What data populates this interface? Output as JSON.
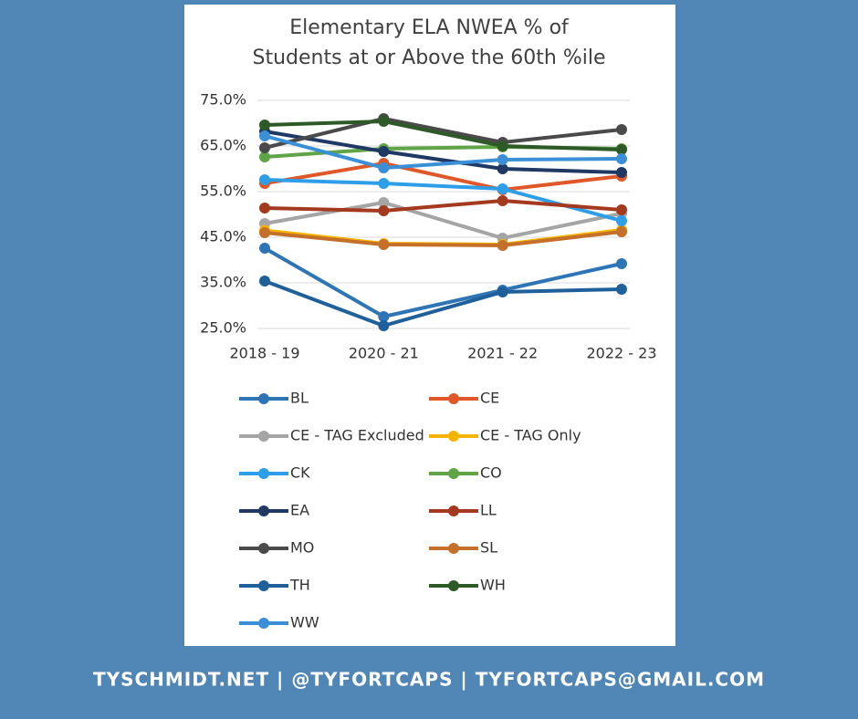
{
  "chart_data": {
    "type": "line",
    "title": [
      "Elementary ELA NWEA % of",
      "Students at or Above the 60th %ile"
    ],
    "categories": [
      "2018 - 19",
      "2020 - 21",
      "2021 - 22",
      "2022 - 23"
    ],
    "ylim": [
      25,
      75
    ],
    "yticks": [
      {
        "value": 25,
        "label": "25.0%"
      },
      {
        "value": 35,
        "label": "35.0%"
      },
      {
        "value": 45,
        "label": "45.0%"
      },
      {
        "value": 55,
        "label": "55.0%"
      },
      {
        "value": 65,
        "label": "65.0%"
      },
      {
        "value": 75,
        "label": "75.0%"
      }
    ],
    "grid": true,
    "legend": "bottom",
    "series": [
      {
        "name": "BL",
        "color": "#2e75b6",
        "values": [
          42.6,
          27.6,
          33.4,
          39.2
        ]
      },
      {
        "name": "CE",
        "color": "#e0582a",
        "values": [
          56.8,
          61.2,
          55.4,
          58.4
        ]
      },
      {
        "name": "CE - TAG Excluded",
        "color": "#a5a5a5",
        "values": [
          48,
          52.6,
          44.8,
          50.2
        ]
      },
      {
        "name": "CE - TAG Only",
        "color": "#f5b400",
        "values": [
          46.5,
          43.6,
          43.4,
          46.6
        ]
      },
      {
        "name": "CK",
        "color": "#2e9ee8",
        "values": [
          57.6,
          56.8,
          55.6,
          48.6
        ]
      },
      {
        "name": "CO",
        "color": "#5fa446",
        "values": [
          62.6,
          64.4,
          64.8,
          64.4
        ]
      },
      {
        "name": "EA",
        "color": "#1f3864",
        "values": [
          68.2,
          63.8,
          60,
          59.2
        ]
      },
      {
        "name": "LL",
        "color": "#a33a1f",
        "values": [
          51.4,
          50.8,
          53,
          51
        ]
      },
      {
        "name": "MO",
        "color": "#4a4a4a",
        "values": [
          64.6,
          71,
          65.8,
          68.6
        ]
      },
      {
        "name": "SL",
        "color": "#c5702a",
        "values": [
          46,
          43.4,
          43.2,
          46.2
        ]
      },
      {
        "name": "TH",
        "color": "#1f5f9a",
        "values": [
          35.4,
          25.6,
          33,
          33.6
        ]
      },
      {
        "name": "WH",
        "color": "#2d5a27",
        "values": [
          69.6,
          70.4,
          65,
          64.2
        ]
      },
      {
        "name": "WW",
        "color": "#3a8fd6",
        "values": [
          67.2,
          60.2,
          62,
          62.2
        ]
      }
    ]
  },
  "footer": "TYSCHMIDT.NET  |  @TYFORTCAPS  |  TYFORTCAPS@GMAIL.COM"
}
